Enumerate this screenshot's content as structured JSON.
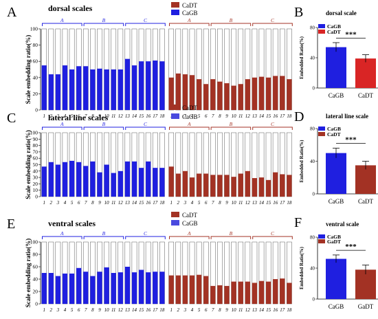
{
  "chart_data": [
    {
      "type": "bar",
      "panel_letter": "A",
      "title": "dorsal scales",
      "ylabel": "Scale embedding ratio(%)",
      "ylim": [
        0,
        100
      ],
      "yticks": [
        0,
        20,
        40,
        60,
        80,
        100
      ],
      "legend": [
        {
          "name": "CaDT",
          "color": "#a33224"
        },
        {
          "name": "CaGB",
          "color": "#1f1fe0"
        }
      ],
      "groups": [
        {
          "name": "CaGB",
          "color": "#1f1fe0",
          "categories": [
            "1",
            "2",
            "3",
            "4",
            "5",
            "6",
            "7",
            "8",
            "9",
            "10",
            "11",
            "12",
            "13",
            "14",
            "15",
            "16",
            "17",
            "18"
          ],
          "values": [
            55,
            44,
            44,
            55,
            50,
            54,
            54,
            50,
            51,
            50,
            50,
            50,
            63,
            55,
            60,
            60,
            61,
            60
          ],
          "brackets": [
            "A",
            "B",
            "C"
          ]
        },
        {
          "name": "CaDT",
          "color": "#a33224",
          "categories": [
            "1",
            "2",
            "3",
            "4",
            "5",
            "6",
            "7",
            "8",
            "9",
            "10",
            "11",
            "12",
            "13",
            "14",
            "15",
            "16",
            "17",
            "18"
          ],
          "values": [
            40,
            45,
            44,
            43,
            38,
            32,
            38,
            35,
            33,
            30,
            32,
            38,
            40,
            41,
            40,
            42,
            42,
            38
          ],
          "brackets": [
            "A",
            "B",
            "C"
          ]
        }
      ]
    },
    {
      "type": "bar",
      "panel_letter": "B",
      "title": "dorsal scale",
      "ylabel": "Embedded Ratio(%)",
      "ylim": [
        0,
        80
      ],
      "yticks": [
        0,
        40,
        80
      ],
      "categories": [
        "CaGB",
        "CaDT"
      ],
      "values": [
        54,
        39
      ],
      "errors": [
        6,
        5
      ],
      "colors": [
        "#1f1fe0",
        "#d92525"
      ],
      "legend": [
        {
          "name": "CaGB",
          "color": "#1f1fe0"
        },
        {
          "name": "CaDT",
          "color": "#d92525"
        }
      ],
      "significance": "***"
    },
    {
      "type": "bar",
      "panel_letter": "C",
      "title": "lateral line scales",
      "ylabel": "Scale embedding ratio(%)",
      "ylim": [
        0,
        100
      ],
      "yticks": [
        0,
        10,
        20,
        30,
        40,
        50,
        60,
        70,
        80,
        90,
        100
      ],
      "legend": [
        {
          "name": "CaDT",
          "color": "#a33224"
        },
        {
          "name": "CaGB",
          "color": "#4a4adf"
        }
      ],
      "groups": [
        {
          "name": "CaGB",
          "color": "#1f1fe0",
          "categories": [
            "1",
            "2",
            "3",
            "4",
            "5",
            "6",
            "7",
            "8",
            "9",
            "10",
            "11",
            "12",
            "13",
            "14",
            "15",
            "16",
            "17",
            "18"
          ],
          "values": [
            47,
            54,
            50,
            54,
            56,
            54,
            48,
            55,
            38,
            50,
            37,
            40,
            55,
            55,
            45,
            55,
            45,
            45
          ],
          "brackets": [
            "A",
            "B",
            "C"
          ]
        },
        {
          "name": "CaDT",
          "color": "#a33224",
          "categories": [
            "1",
            "2",
            "3",
            "4",
            "5",
            "6",
            "7",
            "8",
            "9",
            "10",
            "11",
            "12",
            "13",
            "14",
            "15",
            "16",
            "17",
            "18"
          ],
          "values": [
            47,
            36,
            40,
            30,
            36,
            36,
            34,
            34,
            34,
            31,
            36,
            40,
            29,
            30,
            26,
            38,
            35,
            34
          ],
          "brackets": [
            "A",
            "B",
            "C"
          ]
        }
      ]
    },
    {
      "type": "bar",
      "panel_letter": "D",
      "title": "lateral line scale",
      "ylabel": "Embedded Ratio(%)",
      "ylim": [
        0,
        80
      ],
      "yticks": [
        0,
        40,
        80
      ],
      "categories": [
        "CaGB",
        "CaDT"
      ],
      "values": [
        50,
        35
      ],
      "errors": [
        6,
        5
      ],
      "colors": [
        "#1f1fe0",
        "#a33224"
      ],
      "legend": [
        {
          "name": "CaGB",
          "color": "#1f1fe0"
        },
        {
          "name": "CaDT",
          "color": "#a33224"
        }
      ],
      "significance": "***"
    },
    {
      "type": "bar",
      "panel_letter": "E",
      "title": "ventral scales",
      "ylabel": "Scale embedding ratio(%)",
      "ylim": [
        0,
        100
      ],
      "yticks": [
        0,
        20,
        40,
        60,
        80,
        100
      ],
      "legend": [
        {
          "name": "CaDT",
          "color": "#a33224"
        },
        {
          "name": "CaGB",
          "color": "#4a4adf"
        }
      ],
      "groups": [
        {
          "name": "CaGB",
          "color": "#1f1fe0",
          "categories": [
            "1",
            "2",
            "3",
            "4",
            "5",
            "6",
            "7",
            "8",
            "9",
            "10",
            "11",
            "12",
            "13",
            "14",
            "15",
            "16",
            "17",
            "18"
          ],
          "values": [
            50,
            50,
            45,
            49,
            49,
            58,
            52,
            45,
            52,
            59,
            50,
            51,
            60,
            51,
            55,
            51,
            52,
            52
          ],
          "brackets": [
            "A",
            "B",
            "C"
          ]
        },
        {
          "name": "CaDT",
          "color": "#a33224",
          "categories": [
            "1",
            "2",
            "3",
            "4",
            "5",
            "6",
            "7",
            "8",
            "9",
            "10",
            "11",
            "12",
            "13",
            "14",
            "15",
            "16",
            "17",
            "18"
          ],
          "values": [
            46,
            46,
            46,
            46,
            47,
            45,
            29,
            30,
            29,
            36,
            36,
            36,
            34,
            37,
            36,
            40,
            41,
            34
          ],
          "brackets": [
            "A",
            "B",
            "C"
          ]
        }
      ]
    },
    {
      "type": "bar",
      "panel_letter": "F",
      "title": "ventral scale",
      "ylabel": "Embedded Ratio(%)",
      "ylim": [
        0,
        80
      ],
      "yticks": [
        0,
        40,
        80
      ],
      "categories": [
        "CaGB",
        "GaDT"
      ],
      "values": [
        52,
        38
      ],
      "errors": [
        5,
        6
      ],
      "colors": [
        "#1f1fe0",
        "#a33224"
      ],
      "legend": [
        {
          "name": "CaGB",
          "color": "#1f1fe0"
        },
        {
          "name": "GaDT",
          "color": "#a33224"
        }
      ],
      "significance": "***"
    }
  ]
}
